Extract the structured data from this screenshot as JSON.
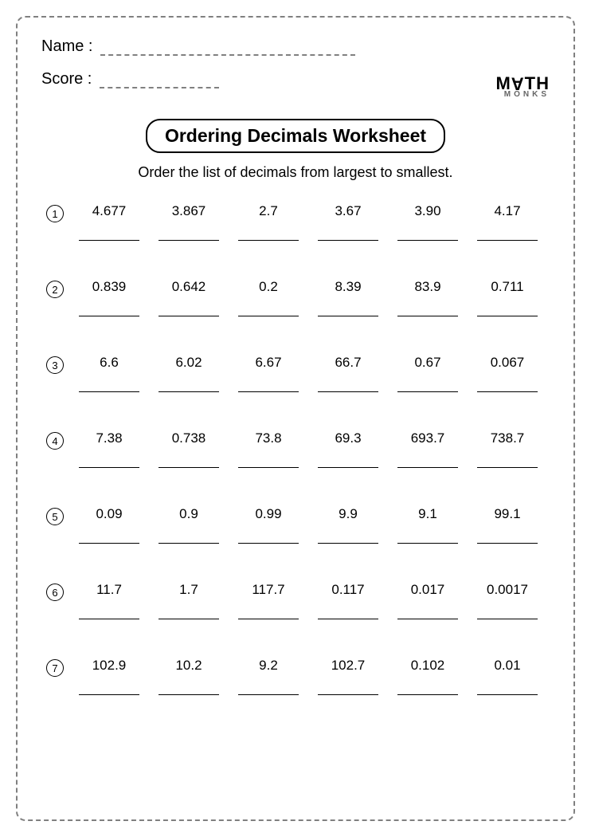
{
  "header": {
    "name_label": "Name :",
    "score_label": "Score :",
    "logo_top": "M",
    "logo_a": "A",
    "logo_th": "TH",
    "logo_bot": "MONKS"
  },
  "title": "Ordering Decimals Worksheet",
  "instruction": "Order the list of decimals from largest to smallest.",
  "problems": [
    {
      "num": "1",
      "values": [
        "4.677",
        "3.867",
        "2.7",
        "3.67",
        "3.90",
        "4.17"
      ]
    },
    {
      "num": "2",
      "values": [
        "0.839",
        "0.642",
        "0.2",
        "8.39",
        "83.9",
        "0.711"
      ]
    },
    {
      "num": "3",
      "values": [
        "6.6",
        "6.02",
        "6.67",
        "66.7",
        "0.67",
        "0.067"
      ]
    },
    {
      "num": "4",
      "values": [
        "7.38",
        "0.738",
        "73.8",
        "69.3",
        "693.7",
        "738.7"
      ]
    },
    {
      "num": "5",
      "values": [
        "0.09",
        "0.9",
        "0.99",
        "9.9",
        "9.1",
        "99.1"
      ]
    },
    {
      "num": "6",
      "values": [
        "11.7",
        "1.7",
        "117.7",
        "0.117",
        "0.017",
        "0.0017"
      ]
    },
    {
      "num": "7",
      "values": [
        "102.9",
        "10.2",
        "9.2",
        "102.7",
        "0.102",
        "0.01"
      ]
    }
  ],
  "style": {
    "page_bg": "#ffffff",
    "border_color": "#808080",
    "text_color": "#000000",
    "title_fontsize": 23,
    "instruction_fontsize": 18,
    "value_fontsize": 17,
    "num_columns": 6
  }
}
